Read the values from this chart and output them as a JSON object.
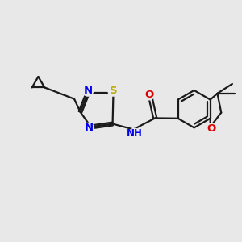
{
  "bg_color": "#e8e8e8",
  "bond_color": "#1a1a1a",
  "bond_width": 1.6,
  "N_color": "#0000ee",
  "S_color": "#bbaa00",
  "O_color": "#dd0000",
  "font_size": 9.5,
  "fig_size": [
    3.0,
    3.0
  ],
  "dpi": 100,
  "xlim": [
    0,
    10
  ],
  "ylim": [
    0,
    10
  ]
}
